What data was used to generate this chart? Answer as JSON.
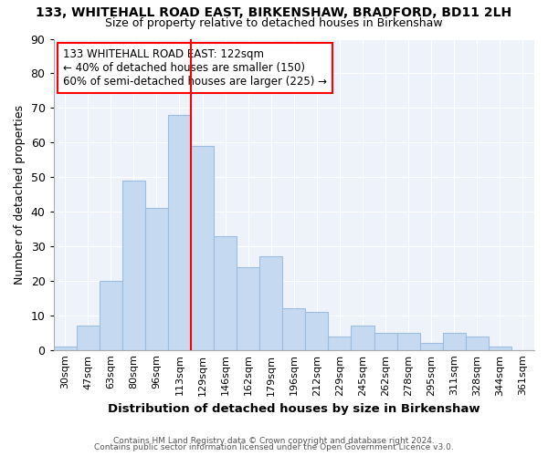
{
  "title1": "133, WHITEHALL ROAD EAST, BIRKENSHAW, BRADFORD, BD11 2LH",
  "title2": "Size of property relative to detached houses in Birkenshaw",
  "xlabel": "Distribution of detached houses by size in Birkenshaw",
  "ylabel": "Number of detached properties",
  "categories": [
    "30sqm",
    "47sqm",
    "63sqm",
    "80sqm",
    "96sqm",
    "113sqm",
    "129sqm",
    "146sqm",
    "162sqm",
    "179sqm",
    "196sqm",
    "212sqm",
    "229sqm",
    "245sqm",
    "262sqm",
    "278sqm",
    "295sqm",
    "311sqm",
    "328sqm",
    "344sqm",
    "361sqm"
  ],
  "values": [
    1,
    7,
    20,
    49,
    41,
    68,
    59,
    33,
    24,
    27,
    12,
    11,
    4,
    7,
    5,
    5,
    2,
    5,
    4,
    1,
    0
  ],
  "bar_color": "#c5d9f1",
  "bar_edge_color": "#9dbde0",
  "annotation_line1": "133 WHITEHALL ROAD EAST: 122sqm",
  "annotation_line2": "← 40% of detached houses are smaller (150)",
  "annotation_line3": "60% of semi-detached houses are larger (225) →",
  "footer1": "Contains HM Land Registry data © Crown copyright and database right 2024.",
  "footer2": "Contains public sector information licensed under the Open Government Licence v3.0.",
  "ylim": [
    0,
    90
  ],
  "yticks": [
    0,
    10,
    20,
    30,
    40,
    50,
    60,
    70,
    80,
    90
  ],
  "red_line_x": 6,
  "bg_color": "#eef3fb"
}
